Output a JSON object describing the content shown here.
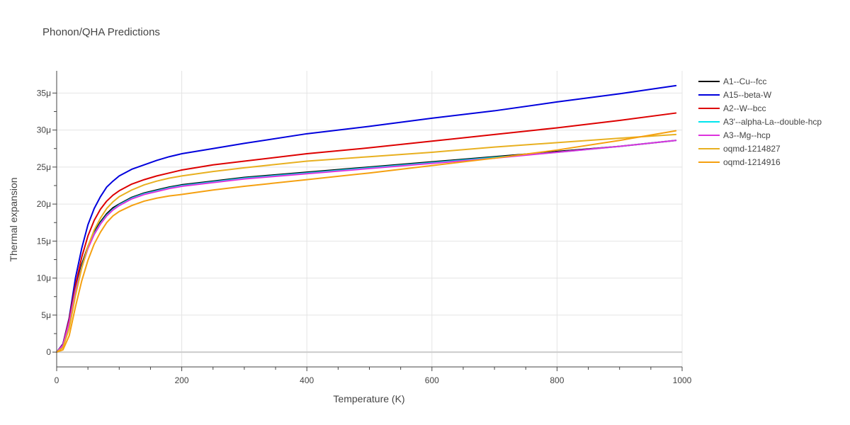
{
  "chart_data": {
    "type": "line",
    "title": "Phonon/QHA Predictions",
    "xlabel": "Temperature (K)",
    "ylabel": "Thermal expansion",
    "xlim": [
      0,
      1000
    ],
    "ylim": [
      -2e-06,
      3.8e-05
    ],
    "xticks": [
      0,
      200,
      400,
      600,
      800,
      1000
    ],
    "xtick_labels": [
      "0",
      "200",
      "400",
      "600",
      "800",
      "1000"
    ],
    "yticks": [
      0,
      5e-06,
      1e-05,
      1.5e-05,
      2e-05,
      2.5e-05,
      3e-05,
      3.5e-05
    ],
    "ytick_labels": [
      "0",
      "5μ",
      "10μ",
      "15μ",
      "20μ",
      "25μ",
      "30μ",
      "35μ"
    ],
    "grid": true,
    "legend_position": "top-right outside",
    "x": [
      0,
      10,
      20,
      30,
      40,
      50,
      60,
      70,
      80,
      90,
      100,
      120,
      140,
      160,
      180,
      200,
      250,
      300,
      400,
      500,
      600,
      700,
      800,
      900,
      990
    ],
    "series": [
      {
        "name": "A1--Cu--fcc",
        "color": "#000000",
        "values": [
          0,
          1e-06,
          4.2e-06,
          8.5e-06,
          1.18e-05,
          1.43e-05,
          1.62e-05,
          1.76e-05,
          1.87e-05,
          1.95e-05,
          2e-05,
          2.09e-05,
          2.15e-05,
          2.19e-05,
          2.23e-05,
          2.26e-05,
          2.31e-05,
          2.36e-05,
          2.43e-05,
          2.5e-05,
          2.57e-05,
          2.64e-05,
          2.71e-05,
          2.78e-05,
          2.86e-05
        ]
      },
      {
        "name": "A15--beta-W",
        "color": "#0000dd",
        "values": [
          0,
          1.1e-06,
          4.6e-06,
          1e-05,
          1.4e-05,
          1.72e-05,
          1.94e-05,
          2.1e-05,
          2.23e-05,
          2.31e-05,
          2.38e-05,
          2.47e-05,
          2.53e-05,
          2.59e-05,
          2.64e-05,
          2.68e-05,
          2.75e-05,
          2.82e-05,
          2.95e-05,
          3.05e-05,
          3.16e-05,
          3.26e-05,
          3.38e-05,
          3.49e-05,
          3.6e-05
        ]
      },
      {
        "name": "A2--W--bcc",
        "color": "#dd0000",
        "values": [
          0,
          1e-06,
          4.4e-06,
          9e-06,
          1.28e-05,
          1.57e-05,
          1.78e-05,
          1.93e-05,
          2.04e-05,
          2.12e-05,
          2.18e-05,
          2.27e-05,
          2.33e-05,
          2.38e-05,
          2.42e-05,
          2.46e-05,
          2.53e-05,
          2.58e-05,
          2.68e-05,
          2.76e-05,
          2.85e-05,
          2.94e-05,
          3.03e-05,
          3.13e-05,
          3.23e-05
        ]
      },
      {
        "name": "A3'--alpha-La--double-hcp",
        "color": "#00e5ee",
        "values": [
          0,
          9e-07,
          4e-06,
          8.3e-06,
          1.15e-05,
          1.41e-05,
          1.6e-05,
          1.74e-05,
          1.85e-05,
          1.93e-05,
          1.99e-05,
          2.08e-05,
          2.14e-05,
          2.18e-05,
          2.22e-05,
          2.25e-05,
          2.3e-05,
          2.35e-05,
          2.42e-05,
          2.49e-05,
          2.56e-05,
          2.63e-05,
          2.7e-05,
          2.78e-05,
          2.86e-05
        ]
      },
      {
        "name": "A3--Mg--hcp",
        "color": "#dd33dd",
        "values": [
          0,
          9e-07,
          4e-06,
          8.2e-06,
          1.14e-05,
          1.4e-05,
          1.59e-05,
          1.73e-05,
          1.84e-05,
          1.92e-05,
          1.98e-05,
          2.07e-05,
          2.13e-05,
          2.17e-05,
          2.21e-05,
          2.24e-05,
          2.29e-05,
          2.34e-05,
          2.41e-05,
          2.48e-05,
          2.55e-05,
          2.62e-05,
          2.7e-05,
          2.78e-05,
          2.86e-05
        ]
      },
      {
        "name": "oqmd-1214827",
        "color": "#e8b020",
        "values": [
          0,
          6e-07,
          3.2e-06,
          7.6e-06,
          1.13e-05,
          1.43e-05,
          1.65e-05,
          1.81e-05,
          1.94e-05,
          2.03e-05,
          2.1e-05,
          2.19e-05,
          2.26e-05,
          2.31e-05,
          2.35e-05,
          2.38e-05,
          2.44e-05,
          2.49e-05,
          2.58e-05,
          2.64e-05,
          2.7e-05,
          2.77e-05,
          2.83e-05,
          2.89e-05,
          2.94e-05
        ]
      },
      {
        "name": "oqmd-1214916",
        "color": "#f5a010",
        "values": [
          0,
          3e-07,
          2.2e-06,
          6.1e-06,
          9.6e-06,
          1.24e-05,
          1.46e-05,
          1.62e-05,
          1.75e-05,
          1.84e-05,
          1.9e-05,
          1.98e-05,
          2.04e-05,
          2.08e-05,
          2.11e-05,
          2.13e-05,
          2.19e-05,
          2.24e-05,
          2.33e-05,
          2.42e-05,
          2.52e-05,
          2.62e-05,
          2.73e-05,
          2.86e-05,
          2.99e-05
        ]
      }
    ]
  }
}
